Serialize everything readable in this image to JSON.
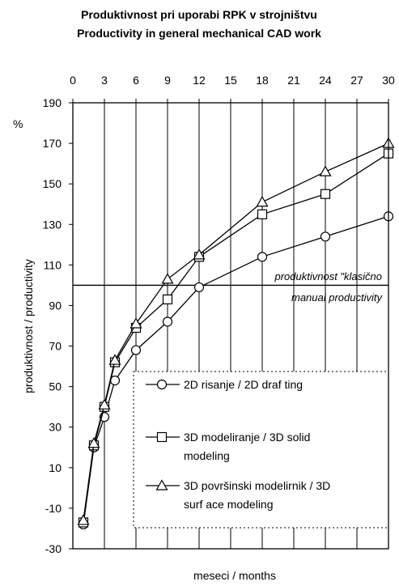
{
  "chart_data": {
    "type": "line",
    "title": "Produktivnost pri uporabi RPK v strojništvu",
    "subtitle": "Productivity in general mechanical CAD work",
    "xlabel": "meseci / months",
    "ylabel": "produktivnost / productivity",
    "yunit": "%",
    "xlim": [
      0,
      30
    ],
    "ylim": [
      -30,
      190
    ],
    "x_ticks": [
      0,
      3,
      6,
      9,
      12,
      15,
      18,
      21,
      24,
      27,
      30
    ],
    "y_ticks": [
      -30,
      -10,
      10,
      30,
      50,
      70,
      90,
      110,
      130,
      150,
      170,
      190
    ],
    "x_tick_labels": [
      "0",
      "3",
      "6",
      "9",
      "12",
      "15",
      "18",
      "21",
      "24",
      "27",
      "30"
    ],
    "y_tick_labels": [
      "-30",
      "-10",
      "10",
      "30",
      "50",
      "70",
      "90",
      "110",
      "130",
      "150",
      "170",
      "190"
    ],
    "x_axis_position": "top",
    "grid": "vertical-x",
    "legend_placement": "bottom-right",
    "series": [
      {
        "name": "2D risanje / 2D drafting",
        "marker": "circle",
        "x": [
          1,
          2,
          3,
          4,
          6,
          9,
          12,
          18,
          24,
          30
        ],
        "y": [
          -18,
          20,
          35,
          53,
          68,
          82,
          99,
          114,
          124,
          134
        ]
      },
      {
        "name": "3D modeliranje / 3D solid modeling",
        "marker": "square",
        "x": [
          1,
          2,
          3,
          4,
          6,
          9,
          12,
          18,
          24,
          30
        ],
        "y": [
          -17,
          21,
          40,
          62,
          79,
          93,
          114,
          135,
          145,
          165
        ]
      },
      {
        "name": "3D površinski modelirnik / 3D surface modeling",
        "marker": "triangle",
        "x": [
          1,
          2,
          3,
          4,
          6,
          9,
          12,
          18,
          24,
          30
        ],
        "y": [
          -16,
          22,
          41,
          63,
          81,
          103,
          115,
          141,
          156,
          170
        ]
      }
    ],
    "reference_line": {
      "y": 100,
      "label_line1": "produktivnost \"klasično",
      "label_line2": "manual productivity"
    },
    "legend": [
      {
        "lines": [
          "2D risanje / 2D draf ting"
        ]
      },
      {
        "lines": [
          "3D modeliranje / 3D solid",
          "modeling"
        ]
      },
      {
        "lines": [
          "3D površinski modelirnik / 3D",
          "surf ace modeling"
        ]
      }
    ]
  }
}
